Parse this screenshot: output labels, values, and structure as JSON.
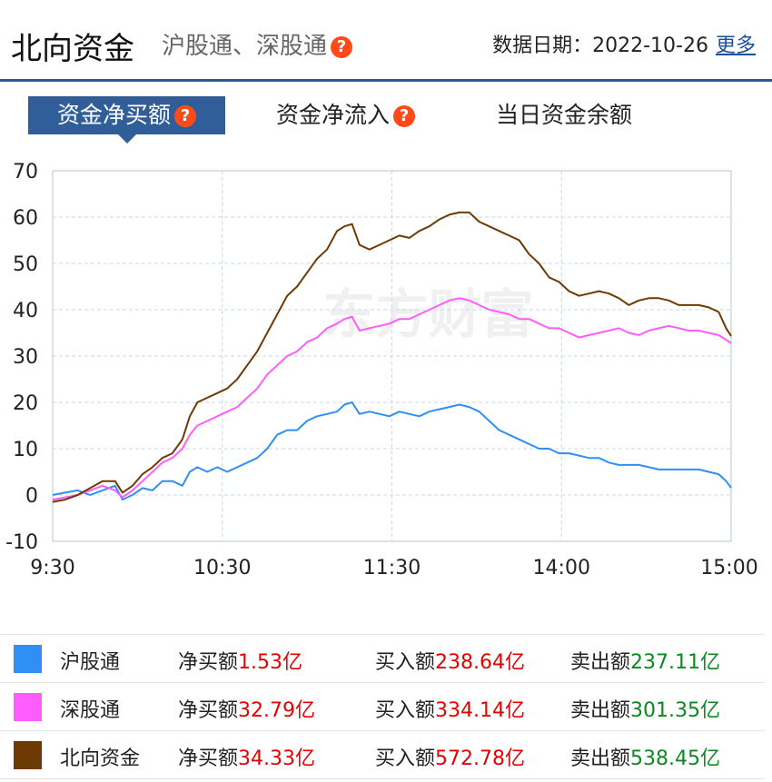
{
  "header": {
    "title": "北向资金",
    "subtitle": "沪股通、深股通",
    "help_glyph": "?",
    "date_label": "数据日期：",
    "date_value": "2022-10-26",
    "more_label": "更多"
  },
  "tabs": [
    {
      "label": "资金净买额",
      "active": true,
      "help": true
    },
    {
      "label": "资金净流入",
      "active": false,
      "help": true
    },
    {
      "label": "当日资金余额",
      "active": false,
      "help": false
    }
  ],
  "watermark": "东方财富",
  "chart_data": {
    "type": "line",
    "x_ticks": [
      "9:30",
      "10:30",
      "11:30",
      "14:00",
      "15:00"
    ],
    "y_ticks": [
      -10,
      0,
      10,
      20,
      30,
      40,
      50,
      60,
      70
    ],
    "ylim": [
      -10,
      70
    ],
    "grid": true,
    "series": [
      {
        "name": "沪股通",
        "color": "#2f8ff5",
        "points": [
          [
            0,
            0
          ],
          [
            5,
            0.5
          ],
          [
            10,
            1
          ],
          [
            15,
            0
          ],
          [
            20,
            1
          ],
          [
            25,
            2
          ],
          [
            28,
            -1
          ],
          [
            32,
            0
          ],
          [
            36,
            1.5
          ],
          [
            40,
            1
          ],
          [
            44,
            3
          ],
          [
            48,
            3
          ],
          [
            52,
            2
          ],
          [
            55,
            5
          ],
          [
            58,
            6
          ],
          [
            62,
            5
          ],
          [
            66,
            6
          ],
          [
            70,
            5
          ],
          [
            74,
            6
          ],
          [
            78,
            7
          ],
          [
            82,
            8
          ],
          [
            86,
            10
          ],
          [
            90,
            13
          ],
          [
            94,
            14
          ],
          [
            98,
            14
          ],
          [
            102,
            16
          ],
          [
            106,
            17
          ],
          [
            110,
            17.5
          ],
          [
            114,
            18
          ],
          [
            117,
            19.5
          ],
          [
            120,
            20
          ],
          [
            123,
            17.5
          ],
          [
            127,
            18
          ],
          [
            131,
            17.5
          ],
          [
            135,
            17
          ],
          [
            139,
            18
          ],
          [
            143,
            17.5
          ],
          [
            147,
            17
          ],
          [
            151,
            18
          ],
          [
            155,
            18.5
          ],
          [
            159,
            19
          ],
          [
            163,
            19.5
          ],
          [
            167,
            19
          ],
          [
            171,
            18
          ],
          [
            175,
            16
          ],
          [
            179,
            14
          ],
          [
            183,
            13
          ],
          [
            187,
            12
          ],
          [
            191,
            11
          ],
          [
            195,
            10
          ],
          [
            199,
            10
          ],
          [
            203,
            9
          ],
          [
            207,
            9
          ],
          [
            211,
            8.5
          ],
          [
            215,
            8
          ],
          [
            219,
            8
          ],
          [
            223,
            7
          ],
          [
            227,
            6.5
          ],
          [
            231,
            6.5
          ],
          [
            235,
            6.5
          ],
          [
            239,
            6
          ],
          [
            243,
            5.5
          ],
          [
            247,
            5.5
          ],
          [
            251,
            5.5
          ],
          [
            255,
            5.5
          ],
          [
            259,
            5.5
          ],
          [
            263,
            5
          ],
          [
            267,
            4.5
          ],
          [
            270,
            3
          ],
          [
            272,
            1.53
          ]
        ]
      },
      {
        "name": "深股通",
        "color": "#ff5cff",
        "points": [
          [
            0,
            -1
          ],
          [
            5,
            -0.5
          ],
          [
            10,
            0
          ],
          [
            15,
            1
          ],
          [
            20,
            2
          ],
          [
            25,
            1
          ],
          [
            28,
            -0.5
          ],
          [
            32,
            1
          ],
          [
            36,
            3
          ],
          [
            40,
            5
          ],
          [
            44,
            7
          ],
          [
            48,
            8
          ],
          [
            52,
            10
          ],
          [
            55,
            13
          ],
          [
            58,
            15
          ],
          [
            62,
            16
          ],
          [
            66,
            17
          ],
          [
            70,
            18
          ],
          [
            74,
            19
          ],
          [
            78,
            21
          ],
          [
            82,
            23
          ],
          [
            86,
            26
          ],
          [
            90,
            28
          ],
          [
            94,
            30
          ],
          [
            98,
            31
          ],
          [
            102,
            33
          ],
          [
            106,
            34
          ],
          [
            110,
            36
          ],
          [
            114,
            37
          ],
          [
            117,
            38
          ],
          [
            120,
            38.5
          ],
          [
            123,
            35.5
          ],
          [
            127,
            36
          ],
          [
            131,
            36.5
          ],
          [
            135,
            37
          ],
          [
            139,
            38
          ],
          [
            143,
            38
          ],
          [
            147,
            39
          ],
          [
            151,
            40
          ],
          [
            155,
            41
          ],
          [
            159,
            42
          ],
          [
            163,
            42.5
          ],
          [
            167,
            42
          ],
          [
            171,
            41
          ],
          [
            175,
            40
          ],
          [
            179,
            39.5
          ],
          [
            183,
            39
          ],
          [
            187,
            38
          ],
          [
            191,
            38
          ],
          [
            195,
            37
          ],
          [
            199,
            36
          ],
          [
            203,
            36
          ],
          [
            207,
            35
          ],
          [
            211,
            34
          ],
          [
            215,
            34.5
          ],
          [
            219,
            35
          ],
          [
            223,
            35.5
          ],
          [
            227,
            36
          ],
          [
            231,
            35
          ],
          [
            235,
            34.5
          ],
          [
            239,
            35.5
          ],
          [
            243,
            36
          ],
          [
            247,
            36.5
          ],
          [
            251,
            36
          ],
          [
            255,
            35.5
          ],
          [
            259,
            35.5
          ],
          [
            263,
            35
          ],
          [
            267,
            34.5
          ],
          [
            270,
            33.5
          ],
          [
            272,
            32.79
          ]
        ]
      },
      {
        "name": "北向资金",
        "color": "#6e3a04",
        "points": [
          [
            0,
            -1.5
          ],
          [
            5,
            -1
          ],
          [
            10,
            0
          ],
          [
            15,
            1.5
          ],
          [
            20,
            3
          ],
          [
            25,
            3
          ],
          [
            28,
            0.5
          ],
          [
            32,
            2
          ],
          [
            36,
            4.5
          ],
          [
            40,
            6
          ],
          [
            44,
            8
          ],
          [
            48,
            9
          ],
          [
            52,
            12
          ],
          [
            55,
            17
          ],
          [
            58,
            20
          ],
          [
            62,
            21
          ],
          [
            66,
            22
          ],
          [
            70,
            23
          ],
          [
            74,
            25
          ],
          [
            78,
            28
          ],
          [
            82,
            31
          ],
          [
            86,
            35
          ],
          [
            90,
            39
          ],
          [
            94,
            43
          ],
          [
            98,
            45
          ],
          [
            102,
            48
          ],
          [
            106,
            51
          ],
          [
            110,
            53
          ],
          [
            114,
            57
          ],
          [
            117,
            58
          ],
          [
            120,
            58.5
          ],
          [
            123,
            54
          ],
          [
            127,
            53
          ],
          [
            131,
            54
          ],
          [
            135,
            55
          ],
          [
            139,
            56
          ],
          [
            143,
            55.5
          ],
          [
            147,
            57
          ],
          [
            151,
            58
          ],
          [
            155,
            59.5
          ],
          [
            159,
            60.5
          ],
          [
            163,
            61
          ],
          [
            167,
            61
          ],
          [
            171,
            59
          ],
          [
            175,
            58
          ],
          [
            179,
            57
          ],
          [
            183,
            56
          ],
          [
            187,
            55
          ],
          [
            191,
            52
          ],
          [
            195,
            50
          ],
          [
            199,
            47
          ],
          [
            203,
            46
          ],
          [
            207,
            44
          ],
          [
            211,
            43
          ],
          [
            215,
            43.5
          ],
          [
            219,
            44
          ],
          [
            223,
            43.5
          ],
          [
            227,
            42.5
          ],
          [
            231,
            41
          ],
          [
            235,
            42
          ],
          [
            239,
            42.5
          ],
          [
            243,
            42.5
          ],
          [
            247,
            42
          ],
          [
            251,
            41
          ],
          [
            255,
            41
          ],
          [
            259,
            41
          ],
          [
            263,
            40.5
          ],
          [
            267,
            39.5
          ],
          [
            270,
            36
          ],
          [
            272,
            34.33
          ]
        ]
      }
    ]
  },
  "legend": [
    {
      "name": "沪股通",
      "color": "#2f8ff5",
      "net_label": "净买额",
      "net_value": "1.53亿",
      "buy_label": "买入额",
      "buy_value": "238.64亿",
      "sell_label": "卖出额",
      "sell_value": "237.11亿"
    },
    {
      "name": "深股通",
      "color": "#ff5cff",
      "net_label": "净买额",
      "net_value": "32.79亿",
      "buy_label": "买入额",
      "buy_value": "334.14亿",
      "sell_label": "卖出额",
      "sell_value": "301.35亿"
    },
    {
      "name": "北向资金",
      "color": "#6e3a04",
      "net_label": "净买额",
      "net_value": "34.33亿",
      "buy_label": "买入额",
      "buy_value": "572.78亿",
      "sell_label": "卖出额",
      "sell_value": "538.45亿"
    }
  ]
}
